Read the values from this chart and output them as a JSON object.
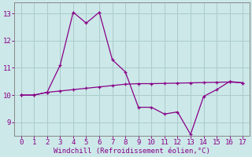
{
  "xlabel": "Windchill (Refroidissement éolien,°C)",
  "background_color": "#cce8e8",
  "line_color": "#880088",
  "grid_color": "#aacccc",
  "xlim": [
    -0.5,
    17.5
  ],
  "ylim": [
    8.5,
    13.4
  ],
  "xticks": [
    0,
    1,
    2,
    3,
    4,
    5,
    6,
    7,
    8,
    9,
    10,
    11,
    12,
    13,
    14,
    15,
    16,
    17
  ],
  "yticks": [
    9,
    10,
    11,
    12,
    13
  ],
  "series1_x": [
    0,
    1,
    2,
    3,
    4,
    5,
    6,
    7,
    8,
    9,
    10,
    11,
    12,
    13,
    14,
    15,
    16,
    17
  ],
  "series1_y": [
    10.0,
    10.0,
    10.1,
    11.1,
    13.05,
    12.65,
    13.05,
    11.3,
    10.85,
    9.55,
    9.55,
    9.3,
    9.38,
    8.55,
    9.95,
    10.2,
    10.5,
    10.45
  ],
  "series2_x": [
    0,
    1,
    2,
    3,
    4,
    5,
    6,
    7,
    8,
    9,
    10,
    11,
    12,
    13,
    14,
    15,
    16,
    17
  ],
  "series2_y": [
    10.0,
    10.0,
    10.1,
    10.15,
    10.2,
    10.25,
    10.3,
    10.35,
    10.4,
    10.42,
    10.42,
    10.43,
    10.44,
    10.45,
    10.46,
    10.47,
    10.48,
    10.45
  ],
  "spine_color": "#888888",
  "tick_labelsize": 6.5,
  "xlabel_fontsize": 6.5
}
